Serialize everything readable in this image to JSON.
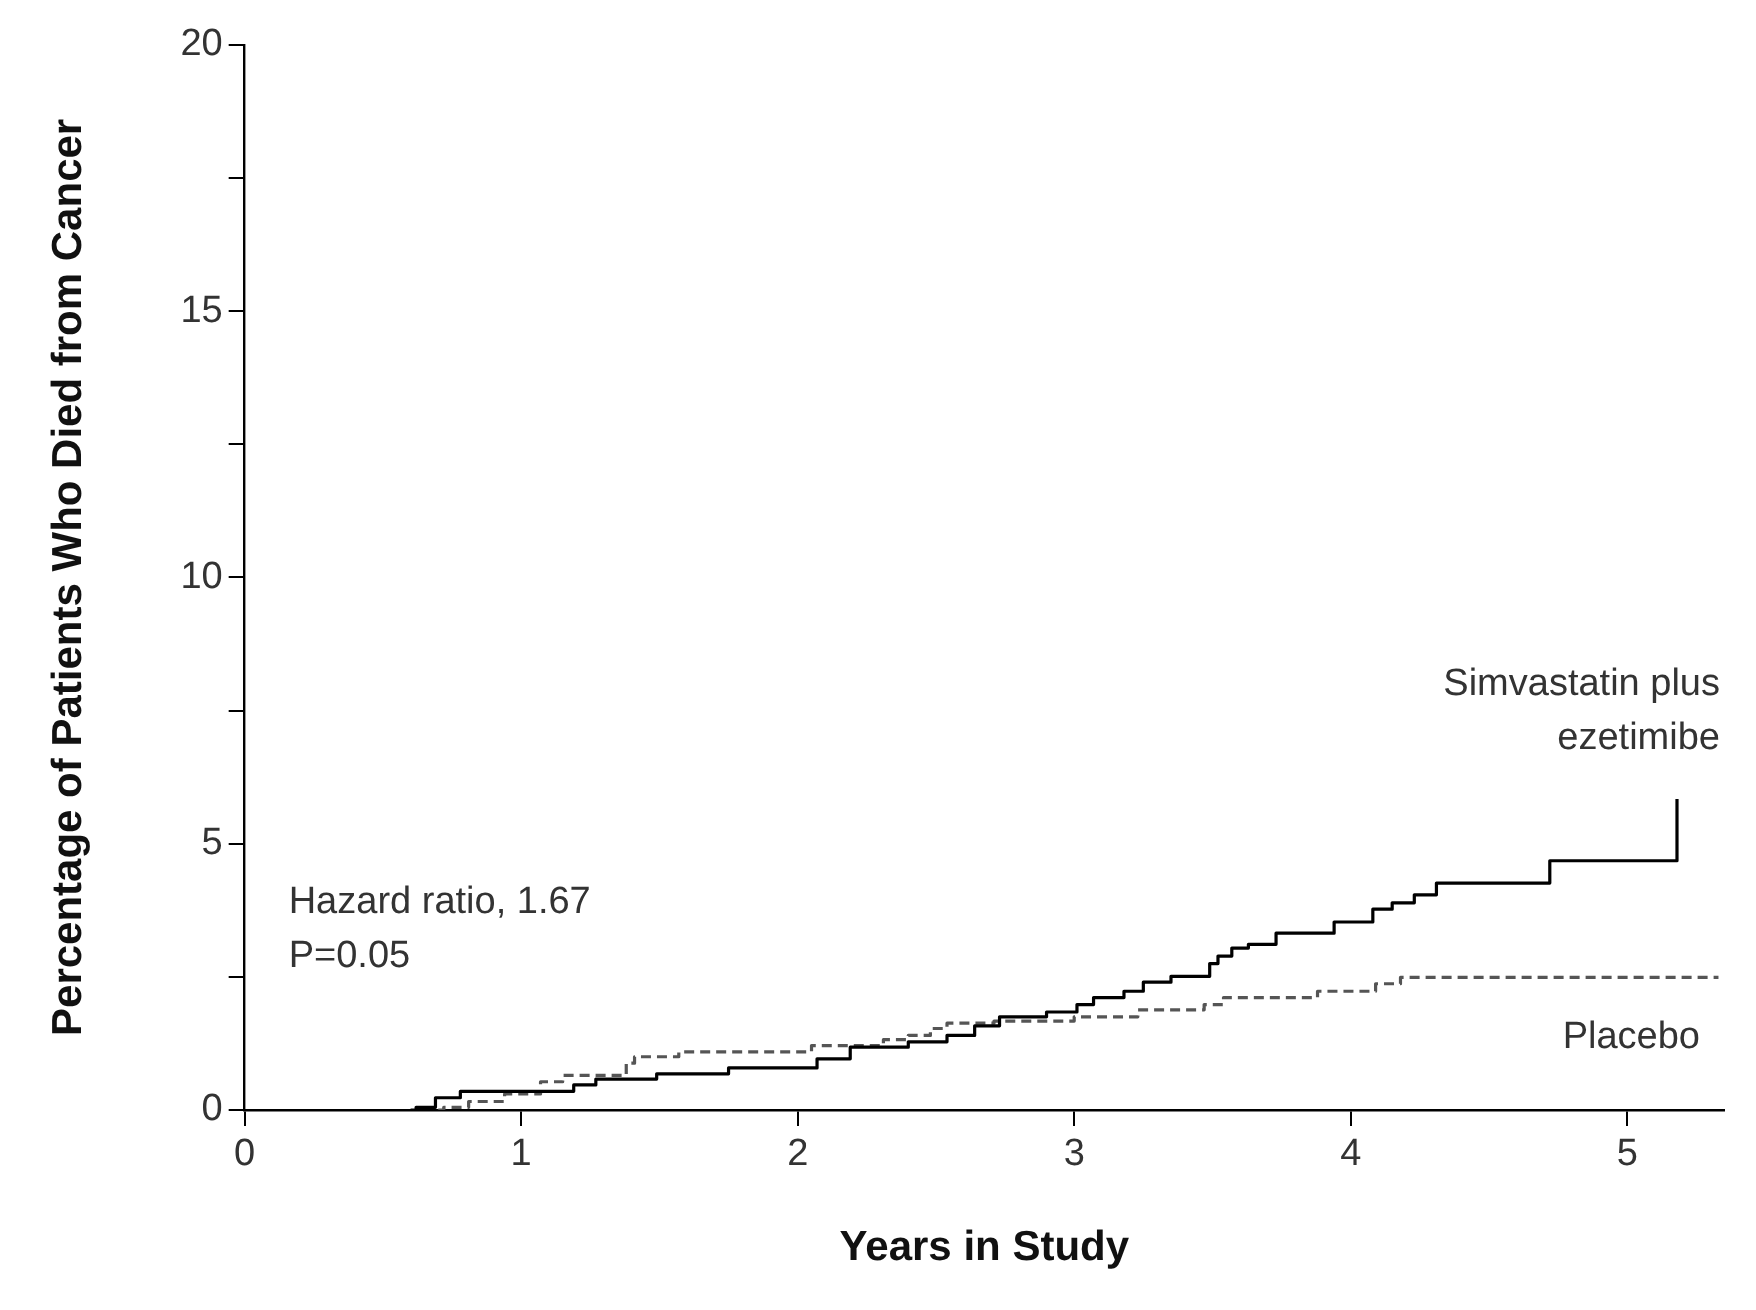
{
  "chart_data": {
    "type": "step",
    "xlabel": "Years in Study",
    "ylabel": "Percentage of Patients Who Died from Cancer",
    "xlim": [
      0,
      5.35
    ],
    "xticks": [
      0,
      1,
      2,
      3,
      4,
      5
    ],
    "ylim": [
      0,
      20
    ],
    "yticks": [
      0,
      {
        "value": 2.5,
        "label": null
      },
      5,
      {
        "value": 7.5,
        "label": null
      },
      10,
      {
        "value": 12.5,
        "label": null
      },
      15,
      {
        "value": 17.5,
        "label": null
      },
      20
    ],
    "grid": false,
    "legend": false,
    "annotations": [
      "Hazard ratio, 1.67",
      "P=0.05"
    ],
    "series": [
      {
        "name": "Simvastatin plus ezetimibe",
        "color": "#000000",
        "line_style": "solid",
        "x": [
          0.6,
          0.62,
          0.69,
          0.78,
          1.19,
          1.27,
          1.49,
          1.75,
          2.07,
          2.19,
          2.4,
          2.54,
          2.64,
          2.73,
          2.9,
          3.01,
          3.07,
          3.18,
          3.25,
          3.35,
          3.49,
          3.52,
          3.57,
          3.63,
          3.73,
          3.94,
          4.08,
          4.15,
          4.23,
          4.31,
          4.72,
          5.18
        ],
        "values": [
          0,
          0.05,
          0.23,
          0.35,
          0.47,
          0.58,
          0.68,
          0.79,
          0.96,
          1.18,
          1.28,
          1.4,
          1.58,
          1.75,
          1.84,
          1.98,
          2.11,
          2.23,
          2.4,
          2.51,
          2.75,
          2.89,
          3.04,
          3.11,
          3.32,
          3.53,
          3.77,
          3.89,
          4.04,
          4.26,
          4.68,
          5.84
        ]
      },
      {
        "name": "Placebo",
        "color": "#555555",
        "line_style": "dashed",
        "x": [
          0.7,
          0.72,
          0.81,
          0.94,
          1.07,
          1.15,
          1.38,
          1.41,
          1.57,
          2.05,
          2.31,
          2.4,
          2.48,
          2.54,
          2.71,
          3.0,
          3.23,
          3.47,
          3.54,
          3.88,
          4.09,
          4.18,
          5.33
        ],
        "values": [
          0,
          0.05,
          0.16,
          0.3,
          0.53,
          0.65,
          0.88,
          1.0,
          1.09,
          1.21,
          1.32,
          1.4,
          1.53,
          1.63,
          1.67,
          1.75,
          1.88,
          1.98,
          2.11,
          2.23,
          2.37,
          2.49,
          2.49
        ]
      }
    ]
  }
}
